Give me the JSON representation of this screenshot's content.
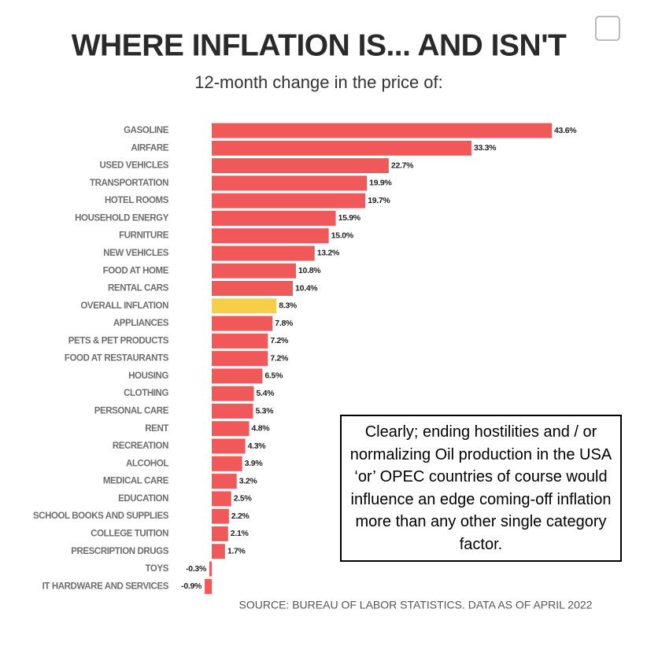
{
  "chart_data": {
    "type": "bar",
    "orientation": "horizontal",
    "title": "WHERE INFLATION IS... AND ISN'T",
    "subtitle": "12-month change in the price of:",
    "source": "SOURCE: BUREAU OF LABOR STATISTICS. DATA AS OF APRIL 2022",
    "annotation": "Clearly; ending hostilities and / or normalizing Oil production in the USA ‘or’ OPEC countries of course would influence an edge coming-off inflation more than any other single category factor.",
    "categories": [
      "GASOLINE",
      "AIRFARE",
      "USED VEHICLES",
      "TRANSPORTATION",
      "HOTEL ROOMS",
      "HOUSEHOLD ENERGY",
      "FURNITURE",
      "NEW VEHICLES",
      "FOOD AT HOME",
      "RENTAL CARS",
      "OVERALL INFLATION",
      "APPLIANCES",
      "PETS & PET PRODUCTS",
      "FOOD AT RESTAURANTS",
      "HOUSING",
      "CLOTHING",
      "PERSONAL CARE",
      "RENT",
      "RECREATION",
      "ALCOHOL",
      "MEDICAL CARE",
      "EDUCATION",
      "SCHOOL BOOKS AND SUPPLIES",
      "COLLEGE TUITION",
      "PRESCRIPTION DRUGS",
      "TOYS",
      "IT HARDWARE AND SERVICES"
    ],
    "values": [
      43.6,
      33.3,
      22.7,
      19.9,
      19.7,
      15.9,
      15.0,
      13.2,
      10.8,
      10.4,
      8.3,
      7.8,
      7.2,
      7.2,
      6.5,
      5.4,
      5.3,
      4.8,
      4.3,
      3.9,
      3.2,
      2.5,
      2.2,
      2.1,
      1.7,
      -0.3,
      -0.9
    ],
    "value_labels": [
      "43.6%",
      "33.3%",
      "22.7%",
      "19.9%",
      "19.7%",
      "15.9%",
      "15.0%",
      "13.2%",
      "10.8%",
      "10.4%",
      "8.3%",
      "7.8%",
      "7.2%",
      "7.2%",
      "6.5%",
      "5.4%",
      "5.3%",
      "4.8%",
      "4.3%",
      "3.9%",
      "3.2%",
      "2.5%",
      "2.2%",
      "2.1%",
      "1.7%",
      "-0.3%",
      "-0.9%"
    ],
    "colors": [
      "#f0585a",
      "#f0585a",
      "#f0585a",
      "#f0585a",
      "#f0585a",
      "#f0585a",
      "#f0585a",
      "#f0585a",
      "#f0585a",
      "#f0585a",
      "#f6cf47",
      "#f0585a",
      "#f0585a",
      "#f0585a",
      "#f0585a",
      "#f0585a",
      "#f0585a",
      "#f0585a",
      "#f0585a",
      "#f0585a",
      "#f0585a",
      "#f0585a",
      "#f0585a",
      "#f0585a",
      "#f0585a",
      "#f0585a",
      "#f0585a"
    ]
  }
}
